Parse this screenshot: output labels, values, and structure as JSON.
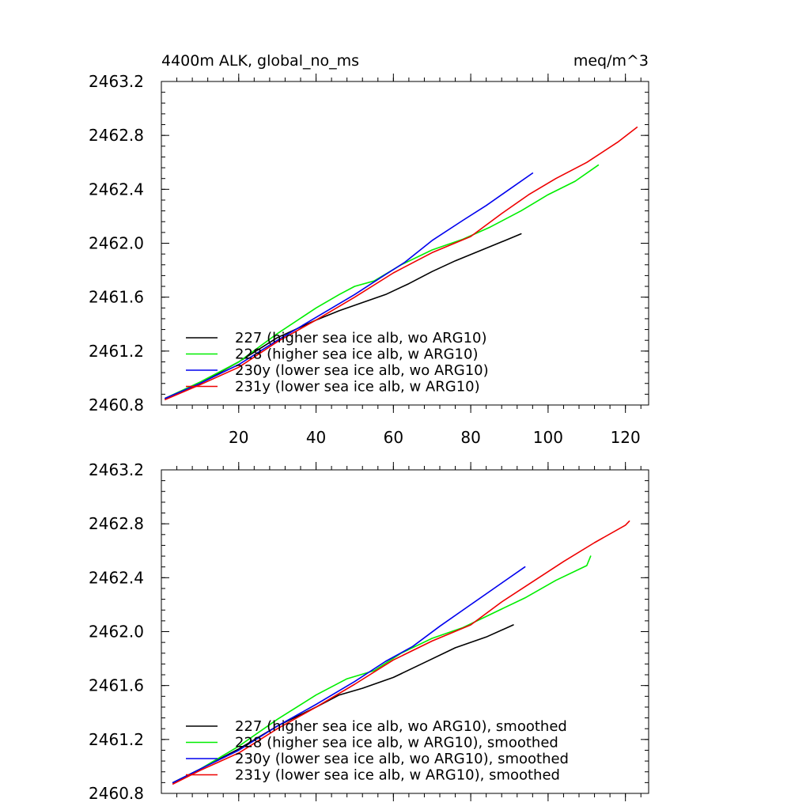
{
  "chart_data": [
    {
      "type": "line",
      "title": "4400m ALK, global_no_ms",
      "units": "meq/m^3",
      "xlim": [
        0,
        126
      ],
      "ylim": [
        2460.8,
        2463.2
      ],
      "x_ticks": [
        "20",
        "40",
        "60",
        "80",
        "100",
        "120"
      ],
      "y_ticks": [
        "2460.8",
        "2461.2",
        "2461.6",
        "2462.0",
        "2462.4",
        "2462.8",
        "2463.2"
      ],
      "legend": [
        "227 (higher sea ice alb, wo ARG10)",
        "228 (higher sea ice alb, w ARG10)",
        "230y (lower sea ice alb, wo ARG10)",
        "231y (lower sea ice alb, w ARG10)"
      ],
      "series": [
        {
          "name": "227",
          "color": "#000000",
          "points": [
            [
              1,
              2460.85
            ],
            [
              10,
              2460.96
            ],
            [
              20,
              2461.12
            ],
            [
              30,
              2461.3
            ],
            [
              40,
              2461.43
            ],
            [
              46,
              2461.5
            ],
            [
              52,
              2461.56
            ],
            [
              58,
              2461.62
            ],
            [
              64,
              2461.7
            ],
            [
              70,
              2461.79
            ],
            [
              76,
              2461.87
            ],
            [
              82,
              2461.94
            ],
            [
              88,
              2462.01
            ],
            [
              93,
              2462.07
            ]
          ]
        },
        {
          "name": "228",
          "color": "#00ee00",
          "points": [
            [
              1,
              2460.85
            ],
            [
              10,
              2460.97
            ],
            [
              20,
              2461.12
            ],
            [
              30,
              2461.33
            ],
            [
              40,
              2461.52
            ],
            [
              46,
              2461.62
            ],
            [
              50,
              2461.68
            ],
            [
              55,
              2461.72
            ],
            [
              62,
              2461.84
            ],
            [
              70,
              2461.95
            ],
            [
              78,
              2462.03
            ],
            [
              85,
              2462.12
            ],
            [
              93,
              2462.24
            ],
            [
              100,
              2462.36
            ],
            [
              107,
              2462.46
            ],
            [
              113,
              2462.58
            ]
          ]
        },
        {
          "name": "230y",
          "color": "#0000ee",
          "points": [
            [
              1,
              2460.85
            ],
            [
              10,
              2460.96
            ],
            [
              20,
              2461.1
            ],
            [
              30,
              2461.28
            ],
            [
              40,
              2461.45
            ],
            [
              50,
              2461.62
            ],
            [
              57,
              2461.75
            ],
            [
              63,
              2461.86
            ],
            [
              70,
              2462.02
            ],
            [
              78,
              2462.17
            ],
            [
              84,
              2462.28
            ],
            [
              90,
              2462.4
            ],
            [
              96,
              2462.52
            ]
          ]
        },
        {
          "name": "231y",
          "color": "#ee0000",
          "points": [
            [
              1,
              2460.84
            ],
            [
              10,
              2460.95
            ],
            [
              20,
              2461.08
            ],
            [
              30,
              2461.27
            ],
            [
              40,
              2461.43
            ],
            [
              50,
              2461.6
            ],
            [
              60,
              2461.78
            ],
            [
              70,
              2461.93
            ],
            [
              80,
              2462.05
            ],
            [
              88,
              2462.22
            ],
            [
              95,
              2462.36
            ],
            [
              102,
              2462.48
            ],
            [
              110,
              2462.6
            ],
            [
              118,
              2462.75
            ],
            [
              123,
              2462.86
            ]
          ]
        }
      ]
    },
    {
      "type": "line",
      "title": "",
      "units": "",
      "xlim": [
        0,
        126
      ],
      "ylim": [
        2460.8,
        2463.2
      ],
      "y_ticks": [
        "2460.8",
        "2461.2",
        "2461.6",
        "2462.0",
        "2462.4",
        "2462.8",
        "2463.2"
      ],
      "legend": [
        "227 (higher sea ice alb, wo ARG10), smoothed",
        "228 (higher sea ice alb, w ARG10), smoothed",
        "230y (lower sea ice alb, wo ARG10), smoothed",
        "231y (lower sea ice alb, w ARG10), smoothed"
      ],
      "series": [
        {
          "name": "227 smoothed",
          "color": "#000000",
          "points": [
            [
              3,
              2460.88
            ],
            [
              10,
              2460.98
            ],
            [
              20,
              2461.13
            ],
            [
              30,
              2461.3
            ],
            [
              40,
              2461.44
            ],
            [
              46,
              2461.53
            ],
            [
              52,
              2461.58
            ],
            [
              60,
              2461.66
            ],
            [
              68,
              2461.77
            ],
            [
              76,
              2461.88
            ],
            [
              84,
              2461.96
            ],
            [
              91,
              2462.05
            ]
          ]
        },
        {
          "name": "228 smoothed",
          "color": "#00ee00",
          "points": [
            [
              3,
              2460.88
            ],
            [
              10,
              2460.98
            ],
            [
              20,
              2461.15
            ],
            [
              30,
              2461.35
            ],
            [
              40,
              2461.53
            ],
            [
              48,
              2461.65
            ],
            [
              55,
              2461.71
            ],
            [
              62,
              2461.84
            ],
            [
              70,
              2461.95
            ],
            [
              78,
              2462.03
            ],
            [
              86,
              2462.14
            ],
            [
              94,
              2462.25
            ],
            [
              102,
              2462.38
            ],
            [
              110,
              2462.49
            ],
            [
              111,
              2462.56
            ]
          ]
        },
        {
          "name": "230y smoothed",
          "color": "#0000ee",
          "points": [
            [
              3,
              2460.88
            ],
            [
              10,
              2460.98
            ],
            [
              20,
              2461.12
            ],
            [
              30,
              2461.3
            ],
            [
              40,
              2461.46
            ],
            [
              50,
              2461.63
            ],
            [
              58,
              2461.78
            ],
            [
              65,
              2461.89
            ],
            [
              72,
              2462.04
            ],
            [
              80,
              2462.2
            ],
            [
              88,
              2462.36
            ],
            [
              94,
              2462.48
            ]
          ]
        },
        {
          "name": "231y smoothed",
          "color": "#ee0000",
          "points": [
            [
              3,
              2460.87
            ],
            [
              10,
              2460.97
            ],
            [
              20,
              2461.1
            ],
            [
              30,
              2461.28
            ],
            [
              40,
              2461.44
            ],
            [
              50,
              2461.61
            ],
            [
              60,
              2461.79
            ],
            [
              70,
              2461.93
            ],
            [
              80,
              2462.05
            ],
            [
              88,
              2462.22
            ],
            [
              96,
              2462.37
            ],
            [
              104,
              2462.52
            ],
            [
              112,
              2462.66
            ],
            [
              120,
              2462.79
            ],
            [
              121,
              2462.82
            ]
          ]
        }
      ]
    }
  ]
}
